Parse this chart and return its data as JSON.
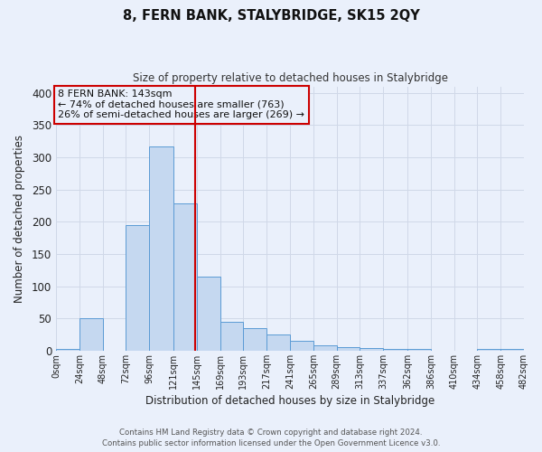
{
  "title": "8, FERN BANK, STALYBRIDGE, SK15 2QY",
  "subtitle": "Size of property relative to detached houses in Stalybridge",
  "xlabel": "Distribution of detached houses by size in Stalybridge",
  "ylabel": "Number of detached properties",
  "bin_edges": [
    0,
    24,
    48,
    72,
    96,
    121,
    145,
    169,
    193,
    217,
    241,
    265,
    289,
    313,
    337,
    362,
    386,
    410,
    434,
    458,
    482
  ],
  "bin_labels": [
    "0sqm",
    "24sqm",
    "48sqm",
    "72sqm",
    "96sqm",
    "121sqm",
    "145sqm",
    "169sqm",
    "193sqm",
    "217sqm",
    "241sqm",
    "265sqm",
    "289sqm",
    "313sqm",
    "337sqm",
    "362sqm",
    "386sqm",
    "410sqm",
    "434sqm",
    "458sqm",
    "482sqm"
  ],
  "counts": [
    2,
    50,
    0,
    195,
    317,
    228,
    115,
    45,
    35,
    25,
    15,
    8,
    6,
    4,
    3,
    3,
    0,
    0,
    2,
    2
  ],
  "bar_color": "#c5d8f0",
  "bar_edge_color": "#5b9bd5",
  "grid_color": "#d0d8e8",
  "bg_color": "#eaf0fb",
  "marker_value": 143,
  "marker_color": "#cc0000",
  "annotation_title": "8 FERN BANK: 143sqm",
  "annotation_line1": "← 74% of detached houses are smaller (763)",
  "annotation_line2": "26% of semi-detached houses are larger (269) →",
  "annotation_box_color": "#cc0000",
  "ylim": [
    0,
    410
  ],
  "yticks": [
    0,
    50,
    100,
    150,
    200,
    250,
    300,
    350,
    400
  ],
  "footer1": "Contains HM Land Registry data © Crown copyright and database right 2024.",
  "footer2": "Contains public sector information licensed under the Open Government Licence v3.0."
}
